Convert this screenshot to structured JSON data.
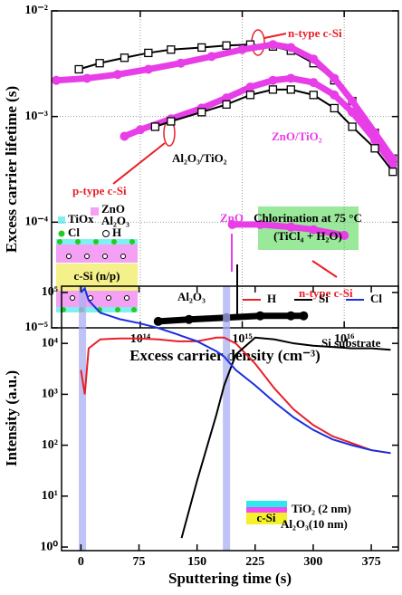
{
  "chart_data": [
    {
      "type": "scatter",
      "x_label": "Excess carrier density  (cm⁻³)",
      "y_label": "Excess carrier lifetime (s)",
      "xscale": "log",
      "yscale": "log",
      "grid": true,
      "xlim": [
        13500000000000.0,
        3.4e+16
      ],
      "ylim": [
        1e-05,
        0.01
      ],
      "xticks": [
        {
          "value": 100000000000000.0,
          "label": "10¹⁴"
        },
        {
          "value": 1000000000000000.0,
          "label": "10¹⁵"
        },
        {
          "value": 1e+16,
          "label": "10¹⁶"
        }
      ],
      "yticks": [
        {
          "value": 1e-05,
          "label": "10⁻⁵"
        },
        {
          "value": 0.0001,
          "label": "10⁻⁴"
        },
        {
          "value": 0.001,
          "label": "10⁻³"
        },
        {
          "value": 0.01,
          "label": "10⁻²"
        }
      ],
      "series": [
        {
          "color": "#000000",
          "marker": "square",
          "x": [
            25000000000000.0,
            40000000000000.0,
            70000000000000.0,
            120000000000000.0,
            200000000000000.0,
            400000000000000.0,
            700000000000000.0,
            1200000000000000.0,
            2000000000000000.0,
            3000000000000000.0,
            5000000000000000.0,
            8000000000000000.0,
            1.2e+16,
            2e+16,
            3e+16
          ],
          "values": [
            0.0028,
            0.0032,
            0.0036,
            0.004,
            0.0043,
            0.0045,
            0.0047,
            0.0048,
            0.0046,
            0.0042,
            0.0032,
            0.0022,
            0.0014,
            0.0007,
            0.0004
          ]
        },
        {
          "color": "#e83ee8",
          "marker": "circle",
          "x": [
            15000000000000.0,
            30000000000000.0,
            60000000000000.0,
            120000000000000.0,
            250000000000000.0,
            500000000000000.0,
            1000000000000000.0,
            2000000000000000.0,
            3000000000000000.0,
            5000000000000000.0,
            8000000000000000.0,
            1.2e+16,
            2e+16,
            3e+16
          ],
          "values": [
            0.0022,
            0.0023,
            0.0025,
            0.0028,
            0.0032,
            0.0037,
            0.0043,
            0.0048,
            0.0045,
            0.0035,
            0.0023,
            0.0014,
            0.0007,
            0.0004
          ]
        },
        {
          "color": "#e83ee8",
          "marker": "circle",
          "x": [
            70000000000000.0,
            100000000000000.0,
            200000000000000.0,
            400000000000000.0,
            700000000000000.0,
            1200000000000000.0,
            2000000000000000.0,
            3000000000000000.0,
            5000000000000000.0,
            8000000000000000.0,
            1.2e+16,
            2e+16,
            3e+16
          ],
          "values": [
            0.00065,
            0.00075,
            0.00095,
            0.0012,
            0.0015,
            0.0019,
            0.0022,
            0.0023,
            0.0021,
            0.0016,
            0.0011,
            0.0006,
            0.00035
          ]
        },
        {
          "color": "#000000",
          "marker": "square",
          "x": [
            140000000000000.0,
            200000000000000.0,
            400000000000000.0,
            700000000000000.0,
            1200000000000000.0,
            2000000000000000.0,
            3000000000000000.0,
            5000000000000000.0,
            8000000000000000.0,
            1.2e+16,
            2e+16,
            3e+16
          ],
          "values": [
            0.0008,
            0.0009,
            0.0011,
            0.0013,
            0.0016,
            0.0018,
            0.0018,
            0.0016,
            0.0012,
            0.0008,
            0.0005,
            0.0003
          ]
        },
        {
          "color": "#e83ee8",
          "marker": "circle",
          "x": [
            800000000000000.0,
            1500000000000000.0,
            3000000000000000.0,
            5000000000000000.0,
            1e+16
          ],
          "values": [
            9.5e-05,
            9.5e-05,
            9e-05,
            8.5e-05,
            7.5e-05
          ]
        },
        {
          "color": "#000000",
          "marker": "circle",
          "x": [
            150000000000000.0,
            300000000000000.0,
            700000000000000.0,
            1500000000000000.0,
            3000000000000000.0,
            4000000000000000.0
          ],
          "values": [
            1.15e-05,
            1.2e-05,
            1.25e-05,
            1.3e-05,
            1.3e-05,
            1.3e-05
          ]
        }
      ],
      "annotations": [
        "n-type c-Si",
        "ZnO/TiO₂",
        "Al₂O₃/TiO₂",
        "p-type c-Si",
        "ZnO",
        "n-type c-Si",
        "Al₂O₃",
        "Chlorination at 75 °C",
        "(TiCl₄ + H₂O)",
        "TiOx",
        "ZnO",
        "Al₂O₃",
        "Cl",
        "H",
        "c-Si (n/p)"
      ]
    },
    {
      "type": "line",
      "x_label": "Sputtering time  (s)",
      "y_label": "Intensity (a.u.)",
      "yscale": "log",
      "grid": false,
      "xlim": [
        -25,
        410
      ],
      "ylim": [
        0.85,
        133000
      ],
      "xticks": [
        0,
        75,
        150,
        225,
        300,
        375
      ],
      "yticks": [
        {
          "value": 1,
          "label": "10⁰"
        },
        {
          "value": 10,
          "label": "10¹"
        },
        {
          "value": 100,
          "label": "10²"
        },
        {
          "value": 1000,
          "label": "10³"
        },
        {
          "value": 10000,
          "label": "10⁴"
        },
        {
          "value": 100000,
          "label": "10⁵"
        }
      ],
      "highlights": [
        2,
        188
      ],
      "x": [
        0,
        5,
        10,
        25,
        50,
        75,
        100,
        125,
        130,
        150,
        175,
        185,
        200,
        225,
        250,
        275,
        300,
        325,
        350,
        375,
        400
      ],
      "series": [
        {
          "name": "H",
          "color": "#e8202a",
          "values": [
            3000,
            1000,
            8000,
            12000,
            12500,
            12500,
            12000,
            11000,
            11000,
            11000,
            13000,
            13000,
            10000,
            4000,
            1300,
            500,
            250,
            150,
            110,
            80,
            70
          ]
        },
        {
          "name": "Si",
          "color": "#000000",
          "values": [
            null,
            null,
            null,
            null,
            null,
            null,
            null,
            null,
            1.5,
            20,
            400,
            1500,
            6000,
            13000,
            12000,
            10000,
            9000,
            8500,
            8000,
            8000,
            7500
          ]
        },
        {
          "name": "Cl",
          "color": "#1a2ee0",
          "values": [
            100000,
            120000,
            70000,
            40000,
            30000,
            25000,
            20000,
            15000,
            14000,
            11000,
            7000,
            5500,
            3000,
            1500,
            700,
            350,
            200,
            130,
            100,
            80,
            70
          ]
        }
      ],
      "annotations": [
        "Si substrate",
        "TiO₂ (2 nm)",
        "Al₂O₃(10 nm)",
        "c-Si"
      ]
    }
  ]
}
